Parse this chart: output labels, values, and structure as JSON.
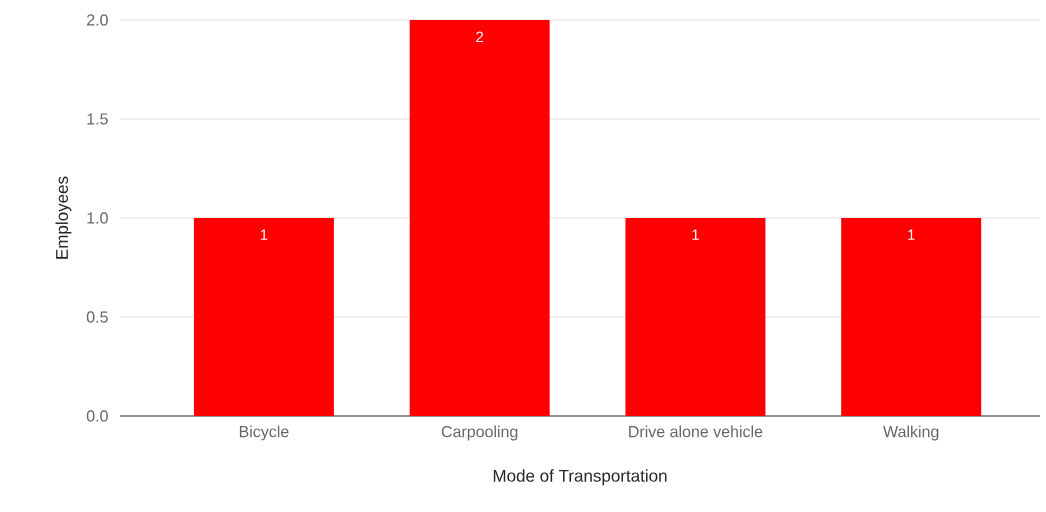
{
  "chart_data": {
    "type": "bar",
    "xlabel": "Mode of Transportation",
    "ylabel": "Employees",
    "categories": [
      "Bicycle",
      "Carpooling",
      "Drive alone vehicle",
      "Walking"
    ],
    "values": [
      1,
      2,
      1,
      1
    ],
    "color": "#ff0000",
    "ylim": [
      0,
      2
    ],
    "yticks": [
      {
        "value": 0,
        "label": "0.0"
      },
      {
        "value": 0.5,
        "label": "0.5"
      },
      {
        "value": 1,
        "label": "1.0"
      },
      {
        "value": 1.5,
        "label": "1.5"
      },
      {
        "value": 2,
        "label": "2.0"
      }
    ],
    "grid": "y",
    "data_labels": true
  }
}
